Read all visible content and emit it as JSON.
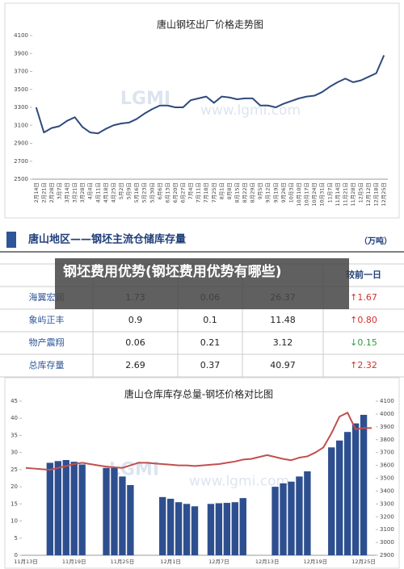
{
  "chart_data": [
    {
      "type": "line",
      "title": "唐山钢坯出厂价格走势图",
      "watermark_logo": "LGMI",
      "watermark": "www.lgmi.com",
      "categories": [
        "2月14日",
        "2月21日",
        "2月28日",
        "3月7日",
        "3月14日",
        "3月21日",
        "3月28日",
        "4月4日",
        "4月11日",
        "4月18日",
        "4月25日",
        "5月2日",
        "5月9日",
        "5月16日",
        "5月23日",
        "5月30日",
        "6月6日",
        "6月13日",
        "6月20日",
        "6月27日",
        "7月4日",
        "7月11日",
        "7月18日",
        "7月25日",
        "8月1日",
        "8月8日",
        "8月15日",
        "8月22日",
        "8月29日",
        "9月5日",
        "9月12日",
        "9月19日",
        "9月26日",
        "10月3日",
        "10月10日",
        "10月17日",
        "10月24日",
        "10月31日",
        "11月7日",
        "11月14日",
        "11月21日",
        "11月28日",
        "12月5日",
        "12月12日",
        "12月18日",
        "12月25日"
      ],
      "series": [
        {
          "color": "#2e4a7d",
          "values": [
            3300,
            3020,
            3070,
            3090,
            3150,
            3190,
            3080,
            3020,
            3010,
            3060,
            3100,
            3120,
            3130,
            3170,
            3230,
            3280,
            3320,
            3320,
            3300,
            3300,
            3380,
            3400,
            3420,
            3350,
            3420,
            3410,
            3390,
            3400,
            3400,
            3320,
            3320,
            3300,
            3340,
            3370,
            3400,
            3420,
            3430,
            3470,
            3530,
            3580,
            3620,
            3580,
            3600,
            3640,
            3680,
            3880
          ]
        }
      ],
      "ylim": [
        2500,
        4100
      ],
      "yticks": [
        2500,
        2700,
        2900,
        3100,
        3300,
        3500,
        3700,
        3900,
        4100
      ]
    },
    {
      "type": "bar",
      "title": "唐山仓库库存总量-钢坯价格对比图",
      "watermark_logo": "LGMI",
      "watermark": "www.lgmi.com",
      "categories": [
        "11月13日",
        null,
        null,
        null,
        null,
        null,
        "11月19日",
        null,
        null,
        null,
        null,
        null,
        "11月25日",
        null,
        null,
        null,
        null,
        null,
        "12月1日",
        null,
        null,
        null,
        null,
        null,
        "12月7日",
        null,
        null,
        null,
        null,
        null,
        "12月13日",
        null,
        null,
        null,
        null,
        null,
        "12月19日",
        null,
        null,
        null,
        null,
        null,
        "12月25日",
        null
      ],
      "series": [
        {
          "type": "bar",
          "color": "#2e4f8f",
          "values": [
            null,
            null,
            null,
            27,
            27.5,
            27.8,
            27.3,
            26.5,
            null,
            null,
            25.5,
            25.5,
            23,
            20.5,
            null,
            null,
            null,
            17,
            16.5,
            15.5,
            15,
            14.3,
            null,
            15,
            15.2,
            15.3,
            15.5,
            16.7,
            null,
            null,
            null,
            20,
            21,
            21.5,
            23,
            24.5,
            null,
            null,
            31.5,
            33.5,
            36,
            38.5,
            41,
            null
          ]
        },
        {
          "type": "line",
          "axis": "y2",
          "color": "#c0504d",
          "values": [
            3580,
            3575,
            3570,
            3565,
            3580,
            3595,
            3610,
            3620,
            3610,
            3600,
            3590,
            3585,
            3580,
            3600,
            3620,
            3620,
            3615,
            3610,
            3605,
            3600,
            3600,
            3595,
            3600,
            3605,
            3610,
            3620,
            3630,
            3645,
            3650,
            3665,
            3680,
            3665,
            3650,
            3640,
            3660,
            3670,
            3700,
            3740,
            3850,
            3980,
            4010,
            3880,
            3890,
            3890
          ]
        }
      ],
      "ylim": [
        0,
        45
      ],
      "yticks": [
        0,
        5,
        10,
        15,
        20,
        25,
        30,
        35,
        40,
        45
      ],
      "y2lim": [
        2900,
        4100
      ],
      "y2ticks": [
        2900,
        3000,
        3100,
        3200,
        3300,
        3400,
        3500,
        3600,
        3700,
        3800,
        3900,
        4000,
        4100
      ]
    }
  ],
  "table": {
    "title": "唐山地区——钢坯主流仓储库存量",
    "unit": "（万吨）",
    "header": "较前一日",
    "rows": [
      [
        "海翼宏润",
        "1.73",
        "0.06",
        "26.37",
        "↑1.67"
      ],
      [
        "象屿正丰",
        "0.9",
        "0.1",
        "11.48",
        "↑0.80"
      ],
      [
        "物产震翔",
        "0.06",
        "0.21",
        "3.12",
        "↓0.15"
      ],
      [
        "总库存量",
        "2.69",
        "0.37",
        "40.97",
        "↑2.32"
      ]
    ]
  },
  "overlay": "钢坯费用优势(钢坯费用优势有哪些)"
}
